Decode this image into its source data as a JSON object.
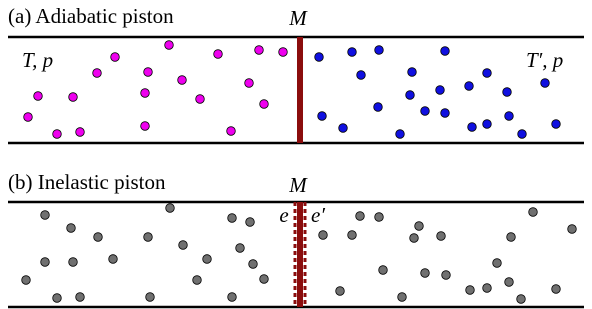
{
  "panel_a": {
    "title": "(a) Adiabatic piston",
    "piston_label": "M",
    "left_label": "T, p",
    "right_label": "T′, p"
  },
  "panel_b": {
    "title": "(b) Inelastic piston",
    "piston_label": "M",
    "left_label": "e",
    "right_label": "e′"
  }
}
